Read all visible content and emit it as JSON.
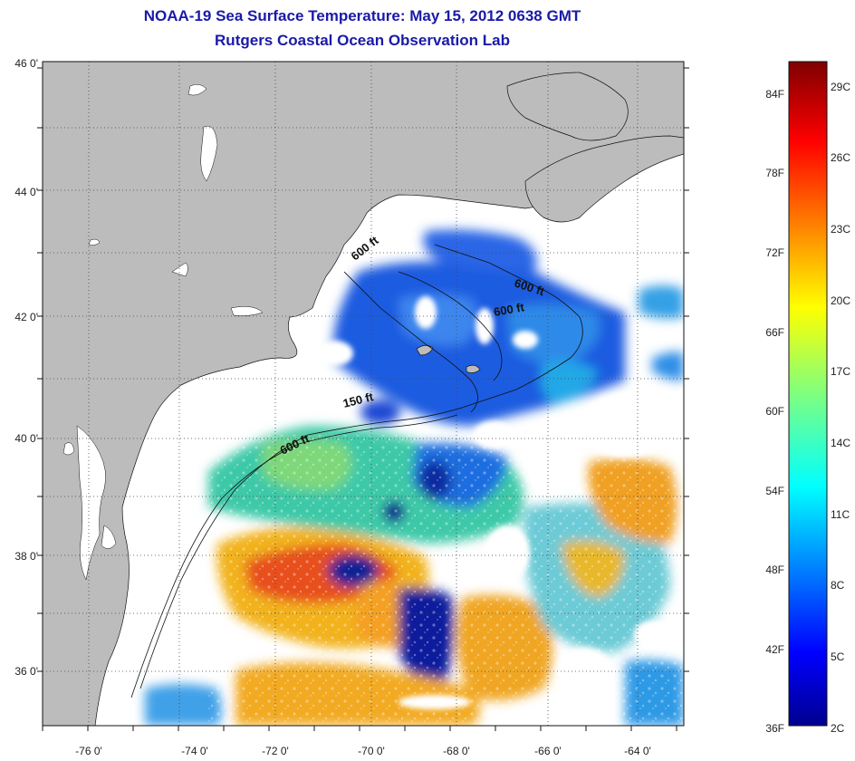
{
  "title": "NOAA-19 Sea Surface Temperature:  May 15, 2012 0638 GMT",
  "subtitle": "Rutgers Coastal Ocean Observation Lab",
  "axes": {
    "lon_ticks": [
      "-76 0'",
      "-74 0'",
      "-72 0'",
      "-70 0'",
      "-68 0'",
      "-66 0'",
      "-64 0'"
    ],
    "lat_ticks": [
      "46 0'",
      "44 0'",
      "42 0'",
      "40 0'",
      "38 0'",
      "36 0'"
    ]
  },
  "contour_labels": [
    "600 ft",
    "600 ft",
    "600 ft",
    "150 ft",
    "600 ft"
  ],
  "colorbar": {
    "fahrenheit": [
      "84F",
      "78F",
      "72F",
      "66F",
      "60F",
      "54F",
      "48F",
      "42F",
      "36F"
    ],
    "celsius": [
      "29C",
      "26C",
      "23C",
      "20C",
      "17C",
      "14C",
      "11C",
      "8C",
      "5C",
      "2C"
    ]
  },
  "colors": {
    "land": "#bcbcbc",
    "cloud": "#ffffff",
    "title": "#1a1aa8"
  }
}
